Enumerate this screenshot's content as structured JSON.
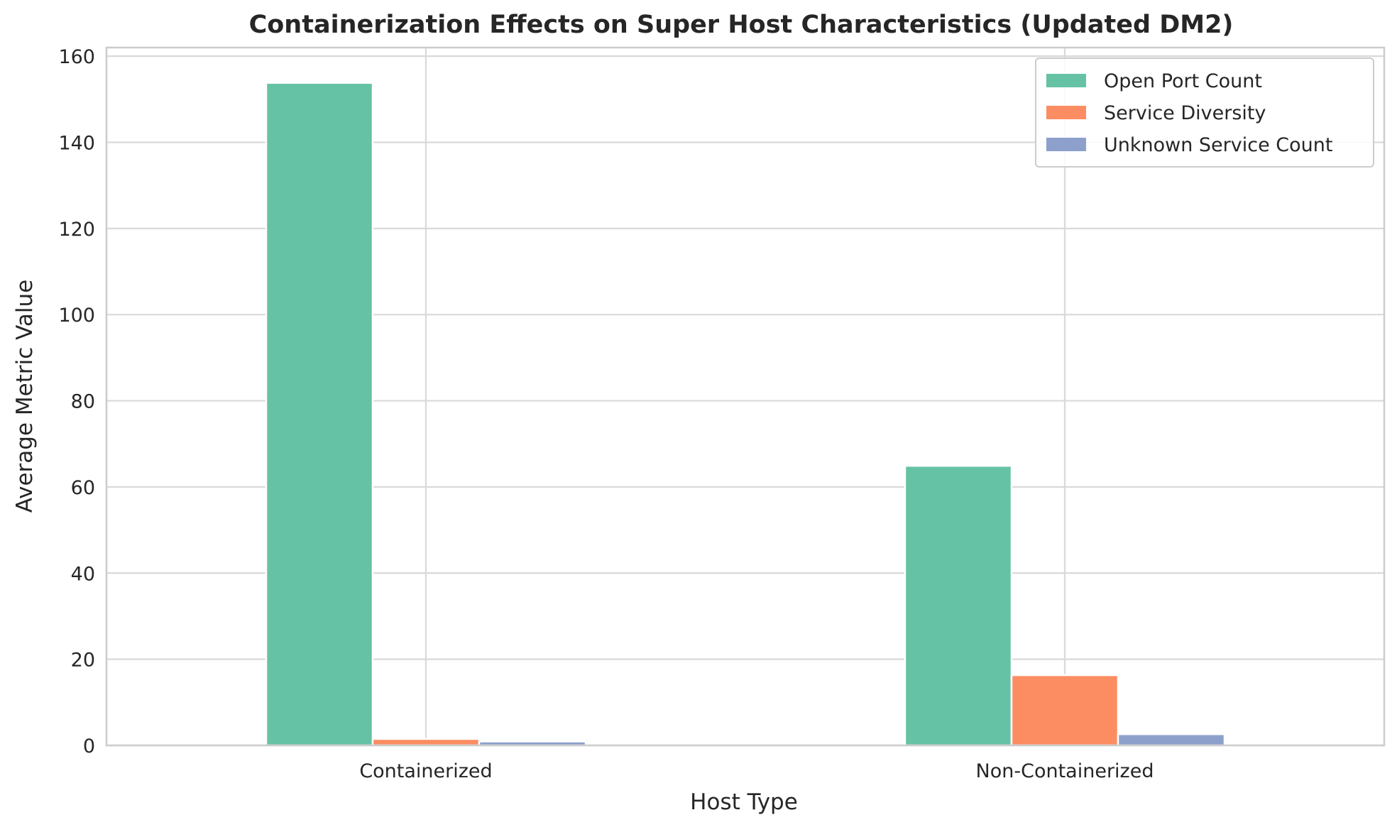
{
  "chart_data": {
    "type": "bar",
    "title": "Containerization Effects on Super Host Characteristics (Updated DM2)",
    "xlabel": "Host Type",
    "ylabel": "Average Metric Value",
    "categories": [
      "Containerized",
      "Non-Containerized"
    ],
    "series": [
      {
        "name": "Open Port Count",
        "color": "#66c2a5",
        "values": [
          153.8,
          64.9
        ]
      },
      {
        "name": "Service Diversity",
        "color": "#fc8d62",
        "values": [
          1.5,
          16.3
        ]
      },
      {
        "name": "Unknown Service Count",
        "color": "#8da0cb",
        "values": [
          0.9,
          2.6
        ]
      }
    ],
    "ylim": [
      0,
      162
    ],
    "yticks": [
      0,
      20,
      40,
      60,
      80,
      100,
      120,
      140,
      160
    ],
    "grid": true,
    "legend_position": "top-right"
  }
}
